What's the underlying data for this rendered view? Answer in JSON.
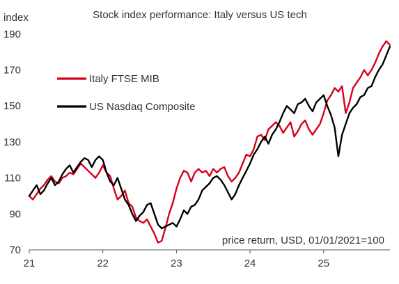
{
  "chart_data": {
    "type": "line",
    "title": "Stock index performance: Italy versus US tech",
    "ylabel": "index",
    "xlabel": "",
    "annotation": "price return, USD, 01/01/2021=100",
    "ylim": [
      70,
      200
    ],
    "xlim": [
      2021.0,
      2025.92
    ],
    "y_ticks": [
      70,
      90,
      110,
      130,
      150,
      170,
      190
    ],
    "x_ticks": [
      {
        "value": 2021.0,
        "label": "21"
      },
      {
        "value": 2022.0,
        "label": "22"
      },
      {
        "value": 2023.0,
        "label": "23"
      },
      {
        "value": 2024.0,
        "label": "24"
      },
      {
        "value": 2025.0,
        "label": "25"
      }
    ],
    "grid": false,
    "legend_position": "upper-left",
    "series": [
      {
        "name": "Italy FTSE MIB",
        "color": "#d6001c",
        "x": [
          2021.0,
          2021.05,
          2021.1,
          2021.15,
          2021.2,
          2021.25,
          2021.3,
          2021.35,
          2021.4,
          2021.45,
          2021.5,
          2021.55,
          2021.6,
          2021.65,
          2021.7,
          2021.75,
          2021.8,
          2021.85,
          2021.9,
          2021.95,
          2022.0,
          2022.05,
          2022.1,
          2022.15,
          2022.2,
          2022.25,
          2022.3,
          2022.35,
          2022.4,
          2022.45,
          2022.5,
          2022.55,
          2022.6,
          2022.65,
          2022.7,
          2022.75,
          2022.8,
          2022.85,
          2022.9,
          2022.95,
          2023.0,
          2023.05,
          2023.1,
          2023.15,
          2023.2,
          2023.25,
          2023.3,
          2023.35,
          2023.4,
          2023.45,
          2023.5,
          2023.55,
          2023.6,
          2023.65,
          2023.7,
          2023.75,
          2023.8,
          2023.85,
          2023.9,
          2023.95,
          2024.0,
          2024.05,
          2024.1,
          2024.15,
          2024.2,
          2024.25,
          2024.3,
          2024.35,
          2024.4,
          2024.45,
          2024.5,
          2024.55,
          2024.6,
          2024.65,
          2024.7,
          2024.75,
          2024.8,
          2024.85,
          2024.9,
          2024.95,
          2025.0,
          2025.05,
          2025.1,
          2025.15,
          2025.2,
          2025.25,
          2025.3,
          2025.35,
          2025.4,
          2025.45,
          2025.5,
          2025.55,
          2025.6,
          2025.65,
          2025.7,
          2025.75,
          2025.8,
          2025.85,
          2025.9
        ],
        "values": [
          100,
          98,
          101,
          104,
          106,
          109,
          111,
          108,
          107,
          110,
          111,
          113,
          112,
          115,
          118,
          116,
          114,
          112,
          110,
          113,
          117,
          113,
          111,
          104,
          98,
          100,
          103,
          96,
          94,
          88,
          86,
          85,
          87,
          83,
          79,
          74,
          75,
          82,
          90,
          96,
          104,
          110,
          114,
          113,
          108,
          113,
          115,
          113,
          114,
          111,
          115,
          113,
          115,
          116,
          111,
          108,
          110,
          113,
          118,
          123,
          122,
          126,
          133,
          134,
          131,
          137,
          139,
          141,
          139,
          135,
          138,
          141,
          133,
          136,
          140,
          142,
          137,
          134,
          137,
          140,
          146,
          153,
          156,
          160,
          158,
          161,
          146,
          152,
          160,
          163,
          166,
          170,
          167,
          170,
          174,
          179,
          183,
          186,
          184
        ]
      },
      {
        "name": "US Nasdaq Composite",
        "color": "#000000",
        "x": [
          2021.0,
          2021.05,
          2021.1,
          2021.15,
          2021.2,
          2021.25,
          2021.3,
          2021.35,
          2021.4,
          2021.45,
          2021.5,
          2021.55,
          2021.6,
          2021.65,
          2021.7,
          2021.75,
          2021.8,
          2021.85,
          2021.9,
          2021.95,
          2022.0,
          2022.05,
          2022.1,
          2022.15,
          2022.2,
          2022.25,
          2022.3,
          2022.35,
          2022.4,
          2022.45,
          2022.5,
          2022.55,
          2022.6,
          2022.65,
          2022.7,
          2022.75,
          2022.8,
          2022.85,
          2022.9,
          2022.95,
          2023.0,
          2023.05,
          2023.1,
          2023.15,
          2023.2,
          2023.25,
          2023.3,
          2023.35,
          2023.4,
          2023.45,
          2023.5,
          2023.55,
          2023.6,
          2023.65,
          2023.7,
          2023.75,
          2023.8,
          2023.85,
          2023.9,
          2023.95,
          2024.0,
          2024.05,
          2024.1,
          2024.15,
          2024.2,
          2024.25,
          2024.3,
          2024.35,
          2024.4,
          2024.45,
          2024.5,
          2024.55,
          2024.6,
          2024.65,
          2024.7,
          2024.75,
          2024.8,
          2024.85,
          2024.9,
          2024.95,
          2025.0,
          2025.05,
          2025.1,
          2025.15,
          2025.2,
          2025.25,
          2025.3,
          2025.35,
          2025.4,
          2025.45,
          2025.5,
          2025.55,
          2025.6,
          2025.65,
          2025.7,
          2025.75,
          2025.8,
          2025.85,
          2025.9
        ],
        "values": [
          100,
          103,
          106,
          101,
          103,
          107,
          110,
          106,
          108,
          112,
          115,
          117,
          113,
          116,
          119,
          121,
          120,
          116,
          120,
          122,
          120,
          113,
          108,
          106,
          110,
          104,
          98,
          95,
          90,
          86,
          89,
          91,
          95,
          96,
          90,
          84,
          82,
          83,
          84,
          85,
          83,
          87,
          92,
          90,
          94,
          95,
          98,
          103,
          105,
          107,
          110,
          111,
          109,
          106,
          102,
          98,
          101,
          106,
          110,
          114,
          118,
          123,
          126,
          130,
          133,
          129,
          134,
          137,
          141,
          146,
          150,
          148,
          146,
          151,
          152,
          154,
          150,
          147,
          152,
          154,
          156,
          150,
          145,
          138,
          122,
          134,
          140,
          146,
          149,
          151,
          155,
          156,
          160,
          161,
          166,
          170,
          173,
          178,
          183
        ]
      }
    ]
  }
}
